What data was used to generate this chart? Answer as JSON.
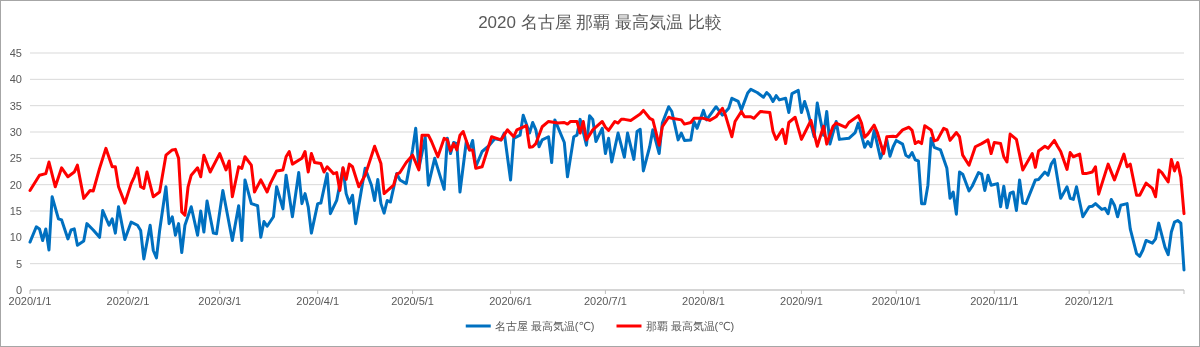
{
  "chart_data": {
    "type": "line",
    "title": "2020 名古屋 那覇 最高気温 比較",
    "xlim": [
      "2020-01-01",
      "2020-12-31"
    ],
    "xticks": [
      {
        "value": "2020-01-01",
        "label": "2020/1/1"
      },
      {
        "value": "2020-02-01",
        "label": "2020/2/1"
      },
      {
        "value": "2020-03-01",
        "label": "2020/3/1"
      },
      {
        "value": "2020-04-01",
        "label": "2020/4/1"
      },
      {
        "value": "2020-05-01",
        "label": "2020/5/1"
      },
      {
        "value": "2020-06-01",
        "label": "2020/6/1"
      },
      {
        "value": "2020-07-01",
        "label": "2020/7/1"
      },
      {
        "value": "2020-08-01",
        "label": "2020/8/1"
      },
      {
        "value": "2020-09-01",
        "label": "2020/9/1"
      },
      {
        "value": "2020-10-01",
        "label": "2020/10/1"
      },
      {
        "value": "2020-11-01",
        "label": "2020/11/1"
      },
      {
        "value": "2020-12-01",
        "label": "2020/12/1"
      }
    ],
    "ylim": [
      0,
      45
    ],
    "yticks": [
      0,
      5,
      10,
      15,
      20,
      25,
      30,
      35,
      40,
      45
    ],
    "grid": "y",
    "legend": "bottom",
    "series": [
      {
        "name": "名古屋 最高気温(℃)",
        "color": "#0070c0",
        "x": [
          "2020-01-01",
          "2020-01-03",
          "2020-01-04",
          "2020-01-05",
          "2020-01-06",
          "2020-01-07",
          "2020-01-08",
          "2020-01-10",
          "2020-01-11",
          "2020-01-13",
          "2020-01-14",
          "2020-01-15",
          "2020-01-16",
          "2020-01-18",
          "2020-01-19",
          "2020-01-21",
          "2020-01-23",
          "2020-01-24",
          "2020-01-26",
          "2020-01-27",
          "2020-01-28",
          "2020-01-29",
          "2020-01-31",
          "2020-02-02",
          "2020-02-04",
          "2020-02-05",
          "2020-02-06",
          "2020-02-08",
          "2020-02-09",
          "2020-02-10",
          "2020-02-11",
          "2020-02-13",
          "2020-02-14",
          "2020-02-15",
          "2020-02-16",
          "2020-02-17",
          "2020-02-18",
          "2020-02-19",
          "2020-02-21",
          "2020-02-23",
          "2020-02-24",
          "2020-02-25",
          "2020-02-26",
          "2020-02-28",
          "2020-02-29",
          "2020-03-02",
          "2020-03-05",
          "2020-03-07",
          "2020-03-08",
          "2020-03-09",
          "2020-03-11",
          "2020-03-13",
          "2020-03-14",
          "2020-03-15",
          "2020-03-16",
          "2020-03-18",
          "2020-03-19",
          "2020-03-21",
          "2020-03-22",
          "2020-03-24",
          "2020-03-26",
          "2020-03-27",
          "2020-03-28",
          "2020-03-29",
          "2020-03-30",
          "2020-04-01",
          "2020-04-02",
          "2020-04-04",
          "2020-04-05",
          "2020-04-07",
          "2020-04-09",
          "2020-04-10",
          "2020-04-11",
          "2020-04-12",
          "2020-04-13",
          "2020-04-15",
          "2020-04-16",
          "2020-04-18",
          "2020-04-19",
          "2020-04-20",
          "2020-04-21",
          "2020-04-22",
          "2020-04-23",
          "2020-04-24",
          "2020-04-26",
          "2020-04-27",
          "2020-04-29",
          "2020-05-01",
          "2020-05-02",
          "2020-05-03",
          "2020-05-05",
          "2020-05-06",
          "2020-05-08",
          "2020-05-11",
          "2020-05-12",
          "2020-05-13",
          "2020-05-14",
          "2020-05-15",
          "2020-05-16",
          "2020-05-18",
          "2020-05-19",
          "2020-05-20",
          "2020-05-21",
          "2020-05-23",
          "2020-05-25",
          "2020-05-27",
          "2020-05-29",
          "2020-05-30",
          "2020-06-01",
          "2020-06-02",
          "2020-06-04",
          "2020-06-05",
          "2020-06-07",
          "2020-06-08",
          "2020-06-09",
          "2020-06-10",
          "2020-06-11",
          "2020-06-13",
          "2020-06-14",
          "2020-06-15",
          "2020-06-18",
          "2020-06-19",
          "2020-06-21",
          "2020-06-22",
          "2020-06-23",
          "2020-06-25",
          "2020-06-26",
          "2020-06-27",
          "2020-06-28",
          "2020-06-30",
          "2020-07-01",
          "2020-07-02",
          "2020-07-03",
          "2020-07-05",
          "2020-07-07",
          "2020-07-08",
          "2020-07-10",
          "2020-07-11",
          "2020-07-12",
          "2020-07-13",
          "2020-07-15",
          "2020-07-16",
          "2020-07-18",
          "2020-07-19",
          "2020-07-21",
          "2020-07-22",
          "2020-07-24",
          "2020-07-25",
          "2020-07-26",
          "2020-07-28",
          "2020-07-29",
          "2020-07-30",
          "2020-08-01",
          "2020-08-02",
          "2020-08-05",
          "2020-08-07",
          "2020-08-09",
          "2020-08-10",
          "2020-08-12",
          "2020-08-13",
          "2020-08-15",
          "2020-08-16",
          "2020-08-18",
          "2020-08-20",
          "2020-08-21",
          "2020-08-22",
          "2020-08-23",
          "2020-08-24",
          "2020-08-25",
          "2020-08-27",
          "2020-08-28",
          "2020-08-29",
          "2020-08-31",
          "2020-09-01",
          "2020-09-02",
          "2020-09-03",
          "2020-09-05",
          "2020-09-06",
          "2020-09-07",
          "2020-09-08",
          "2020-09-09",
          "2020-09-10",
          "2020-09-12",
          "2020-09-13",
          "2020-09-16",
          "2020-09-18",
          "2020-09-19",
          "2020-09-21",
          "2020-09-22",
          "2020-09-23",
          "2020-09-24",
          "2020-09-26",
          "2020-09-27",
          "2020-09-28",
          "2020-09-29",
          "2020-09-30",
          "2020-10-01",
          "2020-10-03",
          "2020-10-04",
          "2020-10-05",
          "2020-10-06",
          "2020-10-07",
          "2020-10-08",
          "2020-10-09",
          "2020-10-10",
          "2020-10-11",
          "2020-10-12",
          "2020-10-13",
          "2020-10-15",
          "2020-10-17",
          "2020-10-18",
          "2020-10-19",
          "2020-10-20",
          "2020-10-21",
          "2020-10-22",
          "2020-10-24",
          "2020-10-25",
          "2020-10-27",
          "2020-10-28",
          "2020-10-29",
          "2020-10-30",
          "2020-10-31",
          "2020-11-02",
          "2020-11-03",
          "2020-11-04",
          "2020-11-05",
          "2020-11-06",
          "2020-11-07",
          "2020-11-08",
          "2020-11-09",
          "2020-11-10",
          "2020-11-11",
          "2020-11-14",
          "2020-11-15",
          "2020-11-17",
          "2020-11-18",
          "2020-11-19",
          "2020-11-20",
          "2020-11-22",
          "2020-11-24",
          "2020-11-25",
          "2020-11-26",
          "2020-11-27",
          "2020-11-28",
          "2020-11-29",
          "2020-12-01",
          "2020-12-02",
          "2020-12-03",
          "2020-12-05",
          "2020-12-06",
          "2020-12-07",
          "2020-12-08",
          "2020-12-09",
          "2020-12-10",
          "2020-12-11",
          "2020-12-13",
          "2020-12-14",
          "2020-12-16",
          "2020-12-17",
          "2020-12-18",
          "2020-12-19",
          "2020-12-21",
          "2020-12-22",
          "2020-12-23",
          "2020-12-25",
          "2020-12-26",
          "2020-12-27",
          "2020-12-28",
          "2020-12-29",
          "2020-12-30",
          "2020-12-31"
        ],
        "values": [
          9.1,
          12.0,
          11.6,
          9.4,
          11.6,
          7.6,
          17.7,
          13.5,
          13.3,
          9.7,
          11.4,
          11.6,
          8.5,
          9.3,
          12.6,
          11.4,
          10.0,
          15.1,
          12.3,
          13.5,
          10.8,
          15.8,
          9.6,
          12.9,
          12.3,
          11.3,
          5.9,
          12.3,
          7.5,
          6.1,
          11.3,
          19.6,
          12.6,
          13.9,
          10.4,
          12.6,
          7.1,
          12.3,
          15.8,
          10.4,
          15.0,
          11.0,
          16.9,
          10.8,
          10.7,
          18.9,
          9.4,
          16.0,
          9.4,
          20.9,
          16.4,
          16.0,
          10.0,
          13.0,
          12.1,
          13.9,
          19.6,
          15.4,
          21.8,
          13.9,
          22.3,
          16.4,
          18.3,
          15.8,
          10.8,
          16.4,
          16.5,
          22.1,
          14.5,
          17.0,
          23.1,
          18.3,
          16.5,
          18.0,
          12.6,
          19.6,
          23.1,
          19.9,
          17.0,
          21.0,
          16.4,
          14.6,
          17.0,
          16.7,
          22.1,
          20.9,
          20.2,
          26.6,
          30.7,
          23.1,
          29.0,
          19.9,
          25.0,
          19.1,
          28.8,
          25.9,
          28.0,
          27.8,
          18.6,
          28.2,
          26.6,
          28.4,
          23.4,
          26.3,
          27.3,
          28.7,
          28.5,
          29.8,
          20.9,
          28.8,
          29.4,
          33.2,
          29.8,
          31.8,
          30.4,
          27.2,
          28.5,
          29.1,
          24.2,
          32.3,
          28.0,
          21.5,
          29.1,
          29.4,
          32.4,
          27.5,
          33.1,
          32.4,
          28.2,
          30.7,
          25.9,
          28.8,
          24.3,
          29.8,
          25.2,
          29.8,
          24.8,
          30.1,
          30.5,
          22.6,
          27.2,
          30.4,
          25.9,
          31.7,
          34.8,
          33.9,
          28.5,
          29.8,
          28.4,
          28.5,
          32.0,
          30.7,
          34.1,
          32.3,
          34.8,
          33.2,
          34.5,
          36.4,
          35.8,
          34.2,
          37.4,
          38.1,
          37.5,
          36.6,
          37.5,
          36.9,
          35.8,
          36.9,
          36.1,
          36.4,
          33.7,
          37.3,
          37.9,
          33.7,
          35.8,
          33.9,
          29.1,
          35.5,
          32.3,
          29.4,
          33.9,
          27.7,
          32.0,
          28.6,
          28.8,
          29.9,
          31.7,
          27.1,
          28.2,
          27.2,
          30.3,
          25.0,
          26.6,
          28.5,
          25.4,
          27.2,
          28.4,
          27.7,
          25.6,
          25.2,
          26.1,
          24.7,
          24.5,
          16.4,
          16.4,
          19.9,
          28.8,
          27.1,
          26.6,
          23.1,
          17.4,
          18.6,
          14.4,
          22.4,
          22.0,
          18.8,
          19.7,
          22.3,
          22.0,
          18.9,
          21.8,
          19.9,
          20.2,
          15.8,
          19.7,
          15.6,
          18.4,
          18.6,
          15.1,
          20.9,
          16.5,
          16.4,
          20.9,
          21.0,
          22.4,
          21.8,
          23.9,
          24.8,
          17.4,
          19.6,
          17.4,
          17.2,
          19.6,
          16.7,
          13.9,
          15.8,
          15.9,
          16.4,
          15.3,
          15.5,
          14.5,
          17.2,
          16.1,
          13.9,
          16.1,
          16.4,
          11.6,
          6.9,
          6.4,
          7.6,
          9.4,
          8.9,
          9.7,
          12.7,
          8.1,
          6.7,
          11.0,
          12.9,
          13.2,
          12.7,
          3.8
        ]
      },
      {
        "name": "那覇 最高気温(℃)",
        "color": "#ff0000",
        "x": [
          "2020-01-01",
          "2020-01-04",
          "2020-01-06",
          "2020-01-07",
          "2020-01-09",
          "2020-01-11",
          "2020-01-13",
          "2020-01-15",
          "2020-01-16",
          "2020-01-18",
          "2020-01-20",
          "2020-01-21",
          "2020-01-23",
          "2020-01-25",
          "2020-01-27",
          "2020-01-28",
          "2020-01-29",
          "2020-01-31",
          "2020-02-02",
          "2020-02-03",
          "2020-02-04",
          "2020-02-05",
          "2020-02-06",
          "2020-02-07",
          "2020-02-09",
          "2020-02-11",
          "2020-02-13",
          "2020-02-15",
          "2020-02-16",
          "2020-02-17",
          "2020-02-18",
          "2020-02-19",
          "2020-02-20",
          "2020-02-21",
          "2020-02-23",
          "2020-02-24",
          "2020-02-25",
          "2020-02-27",
          "2020-03-01",
          "2020-03-03",
          "2020-03-04",
          "2020-03-05",
          "2020-03-07",
          "2020-03-08",
          "2020-03-09",
          "2020-03-11",
          "2020-03-12",
          "2020-03-14",
          "2020-03-16",
          "2020-03-17",
          "2020-03-19",
          "2020-03-21",
          "2020-03-22",
          "2020-03-23",
          "2020-03-24",
          "2020-03-27",
          "2020-03-28",
          "2020-03-29",
          "2020-03-30",
          "2020-03-31",
          "2020-04-02",
          "2020-04-03",
          "2020-04-04",
          "2020-04-06",
          "2020-04-07",
          "2020-04-08",
          "2020-04-09",
          "2020-04-10",
          "2020-04-11",
          "2020-04-12",
          "2020-04-14",
          "2020-04-16",
          "2020-04-19",
          "2020-04-21",
          "2020-04-22",
          "2020-04-25",
          "2020-04-26",
          "2020-04-27",
          "2020-04-29",
          "2020-05-01",
          "2020-05-03",
          "2020-05-04",
          "2020-05-06",
          "2020-05-07",
          "2020-05-09",
          "2020-05-11",
          "2020-05-12",
          "2020-05-13",
          "2020-05-14",
          "2020-05-15",
          "2020-05-16",
          "2020-05-17",
          "2020-05-19",
          "2020-05-20",
          "2020-05-21",
          "2020-05-23",
          "2020-05-26",
          "2020-05-29",
          "2020-05-31",
          "2020-06-02",
          "2020-06-03",
          "2020-06-06",
          "2020-06-07",
          "2020-06-08",
          "2020-06-09",
          "2020-06-11",
          "2020-06-13",
          "2020-06-16",
          "2020-06-18",
          "2020-06-19",
          "2020-06-20",
          "2020-06-22",
          "2020-06-23",
          "2020-06-24",
          "2020-06-25",
          "2020-06-27",
          "2020-06-30",
          "2020-07-01",
          "2020-07-02",
          "2020-07-04",
          "2020-07-05",
          "2020-07-06",
          "2020-07-07",
          "2020-07-09",
          "2020-07-12",
          "2020-07-13",
          "2020-07-15",
          "2020-07-16",
          "2020-07-18",
          "2020-07-19",
          "2020-07-21",
          "2020-07-22",
          "2020-07-25",
          "2020-07-26",
          "2020-07-28",
          "2020-07-29",
          "2020-07-31",
          "2020-08-01",
          "2020-08-03",
          "2020-08-05",
          "2020-08-07",
          "2020-08-08",
          "2020-08-10",
          "2020-08-11",
          "2020-08-13",
          "2020-08-14",
          "2020-08-16",
          "2020-08-17",
          "2020-08-19",
          "2020-08-22",
          "2020-08-23",
          "2020-08-24",
          "2020-08-26",
          "2020-08-27",
          "2020-08-28",
          "2020-08-30",
          "2020-08-31",
          "2020-09-01",
          "2020-09-03",
          "2020-09-04",
          "2020-09-06",
          "2020-09-08",
          "2020-09-09",
          "2020-09-11",
          "2020-09-12",
          "2020-09-15",
          "2020-09-16",
          "2020-09-19",
          "2020-09-20",
          "2020-09-21",
          "2020-09-22",
          "2020-09-24",
          "2020-09-25",
          "2020-09-27",
          "2020-09-28",
          "2020-09-30",
          "2020-10-01",
          "2020-10-03",
          "2020-10-05",
          "2020-10-06",
          "2020-10-07",
          "2020-10-08",
          "2020-10-09",
          "2020-10-10",
          "2020-10-12",
          "2020-10-13",
          "2020-10-14",
          "2020-10-16",
          "2020-10-17",
          "2020-10-18",
          "2020-10-20",
          "2020-10-21",
          "2020-10-22",
          "2020-10-24",
          "2020-10-26",
          "2020-10-28",
          "2020-10-30",
          "2020-10-31",
          "2020-11-01",
          "2020-11-03",
          "2020-11-04",
          "2020-11-05",
          "2020-11-06",
          "2020-11-08",
          "2020-11-10",
          "2020-11-13",
          "2020-11-14",
          "2020-11-15",
          "2020-11-17",
          "2020-11-18",
          "2020-11-20",
          "2020-11-21",
          "2020-11-22",
          "2020-11-24",
          "2020-11-25",
          "2020-11-26",
          "2020-11-28",
          "2020-11-29",
          "2020-11-30",
          "2020-12-02",
          "2020-12-03",
          "2020-12-04",
          "2020-12-07",
          "2020-12-09",
          "2020-12-12",
          "2020-12-13",
          "2020-12-14",
          "2020-12-16",
          "2020-12-17",
          "2020-12-19",
          "2020-12-21",
          "2020-12-22",
          "2020-12-23",
          "2020-12-24",
          "2020-12-26",
          "2020-12-27",
          "2020-12-28",
          "2020-12-29",
          "2020-12-30",
          "2020-12-31"
        ],
        "values": [
          18.9,
          21.8,
          22.1,
          24.3,
          19.6,
          23.2,
          21.5,
          22.4,
          23.7,
          17.4,
          18.9,
          18.8,
          23.1,
          26.9,
          23.4,
          23.4,
          19.6,
          16.5,
          20.2,
          21.5,
          23.2,
          19.6,
          19.3,
          22.4,
          17.7,
          18.6,
          25.6,
          26.6,
          26.7,
          25.0,
          14.8,
          14.2,
          19.6,
          21.8,
          23.2,
          21.5,
          25.6,
          22.4,
          25.9,
          22.8,
          24.5,
          17.7,
          23.4,
          23.1,
          25.3,
          23.7,
          18.6,
          20.9,
          18.6,
          20.2,
          22.6,
          22.8,
          25.3,
          26.3,
          23.9,
          25.0,
          26.3,
          22.4,
          25.9,
          24.2,
          24.0,
          22.4,
          23.4,
          22.1,
          22.3,
          18.9,
          23.2,
          21.0,
          23.9,
          23.4,
          19.6,
          21.8,
          27.3,
          24.0,
          18.3,
          19.9,
          22.0,
          22.3,
          24.2,
          25.6,
          22.8,
          29.4,
          29.4,
          28.2,
          25.3,
          28.8,
          28.5,
          26.4,
          27.8,
          26.6,
          29.4,
          30.1,
          26.6,
          26.6,
          23.1,
          23.4,
          29.1,
          28.5,
          30.4,
          29.1,
          30.4,
          31.2,
          27.1,
          27.2,
          27.8,
          31.0,
          32.0,
          31.7,
          31.8,
          31.5,
          32.0,
          32.0,
          29.8,
          32.0,
          28.5,
          30.4,
          32.0,
          30.9,
          30.3,
          32.0,
          31.7,
          32.4,
          32.4,
          32.2,
          33.4,
          34.1,
          32.6,
          32.3,
          27.5,
          31.0,
          32.8,
          32.6,
          32.3,
          31.5,
          31.8,
          32.6,
          32.6,
          32.6,
          32.2,
          32.9,
          34.5,
          33.1,
          29.1,
          32.0,
          33.9,
          32.9,
          32.9,
          32.6,
          33.9,
          33.7,
          30.1,
          28.6,
          30.5,
          27.8,
          31.8,
          32.8,
          30.7,
          28.6,
          31.0,
          32.2,
          27.3,
          31.1,
          27.7,
          31.1,
          31.7,
          30.9,
          31.8,
          33.1,
          31.7,
          29.0,
          29.6,
          31.3,
          29.9,
          25.9,
          29.1,
          29.2,
          29.1,
          30.4,
          30.9,
          30.3,
          27.8,
          28.2,
          27.8,
          31.2,
          30.4,
          28.3,
          28.5,
          30.7,
          30.4,
          28.4,
          29.9,
          29.1,
          25.6,
          23.7,
          27.2,
          27.8,
          28.5,
          25.9,
          28.0,
          27.8,
          25.3,
          24.3,
          29.6,
          28.6,
          22.8,
          25.9,
          23.3,
          26.4,
          27.3,
          26.9,
          28.4,
          27.3,
          26.3,
          22.9,
          26.1,
          25.3,
          25.8,
          22.1,
          22.1,
          22.4,
          23.4,
          18.2,
          23.9,
          20.9,
          25.8,
          23.4,
          23.9,
          18.0,
          18.0,
          20.3,
          19.3,
          17.7,
          22.8,
          22.3,
          20.5,
          24.8,
          22.6,
          24.2,
          21.4,
          14.5
        ]
      }
    ]
  }
}
